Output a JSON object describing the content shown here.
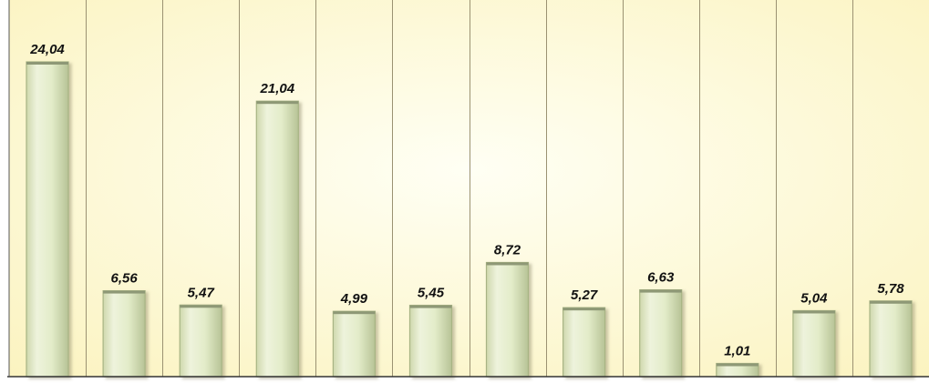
{
  "chart_data": {
    "type": "bar",
    "categories": [
      "",
      "",
      "",
      "",
      "",
      "",
      "",
      "",
      "",
      "",
      "",
      ""
    ],
    "values": [
      24.04,
      6.56,
      5.47,
      21.04,
      4.99,
      5.45,
      8.72,
      5.27,
      6.63,
      1.01,
      5.04,
      5.78
    ],
    "value_labels": [
      "24,04",
      "6,56",
      "5,47",
      "21,04",
      "4,99",
      "5,45",
      "8,72",
      "5,27",
      "6,63",
      "1,01",
      "5,04",
      "5,78"
    ],
    "title": "",
    "xlabel": "",
    "ylabel": "",
    "ylim": [
      0,
      24.04
    ],
    "grid": true,
    "legend": "none",
    "colors": {
      "background_edge": "#fbf3bf",
      "background_center": "#fffff4",
      "bar_fill": "#e3ecc9",
      "bar_edge": "#a8b484",
      "bar_cap": "#8e9876",
      "divider": "#9b9272",
      "axis": "#333333",
      "label": "#111111"
    }
  }
}
